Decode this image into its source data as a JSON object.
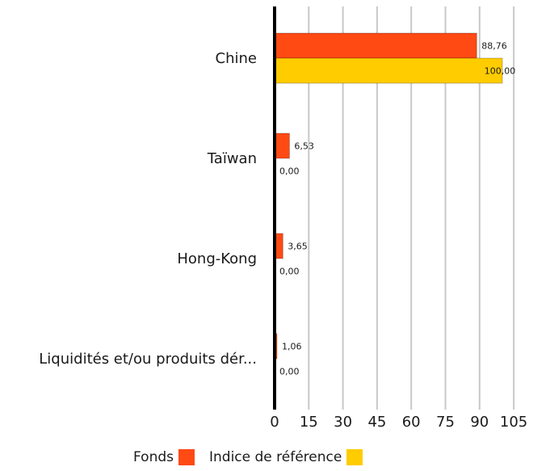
{
  "chart_data": {
    "type": "bar",
    "orientation": "horizontal",
    "categories": [
      "Chine",
      "Taïwan",
      "Hong-Kong",
      "Liquidités et/ou produits dér..."
    ],
    "series": [
      {
        "name": "Fonds",
        "values": [
          88.76,
          6.53,
          3.65,
          1.06
        ],
        "labels": [
          "88,76",
          "6,53",
          "3,65",
          "1,06"
        ],
        "color": "#ff4a14"
      },
      {
        "name": "Indice de référence",
        "values": [
          100.0,
          0.0,
          0.0,
          0.0
        ],
        "labels": [
          "100,00",
          "0,00",
          "0,00",
          "0,00"
        ],
        "color": "#ffcc00"
      }
    ],
    "xlim": [
      0,
      105
    ],
    "xticks": [
      "0",
      "15",
      "30",
      "45",
      "60",
      "75",
      "90",
      "105"
    ],
    "grid": true,
    "legend_position": "bottom"
  },
  "legend": {
    "fund_label": "Fonds",
    "benchmark_label": "Indice de référence"
  }
}
